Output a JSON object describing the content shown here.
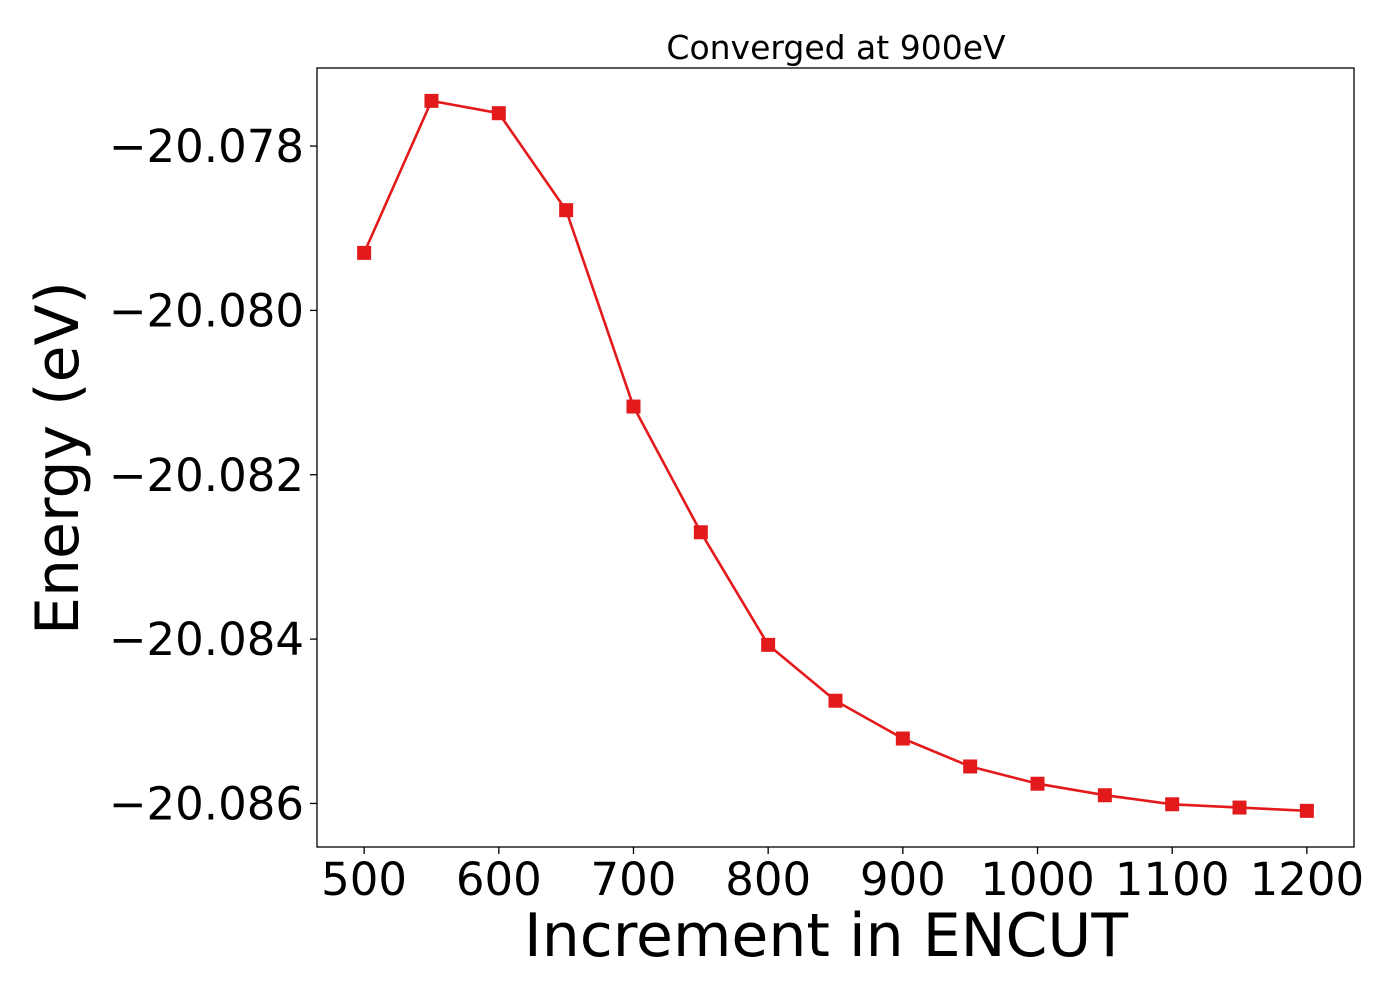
{
  "chart_data": {
    "type": "line",
    "title": "Converged at 900eV",
    "xlabel": "Increment in ENCUT",
    "ylabel": "Energy (eV)",
    "xlim": [
      465,
      1235
    ],
    "ylim": [
      -20.08653,
      -20.07705
    ],
    "xticks": [
      500,
      600,
      700,
      800,
      900,
      1000,
      1100,
      1200
    ],
    "yticks": [
      -20.078,
      -20.08,
      -20.082,
      -20.084,
      -20.086
    ],
    "ytick_labels": [
      "−20.078",
      "−20.080",
      "−20.082",
      "−20.084",
      "−20.086"
    ],
    "grid": false,
    "series": [
      {
        "color": "#e31a1c",
        "marker": "square",
        "x": [
          500,
          550,
          600,
          650,
          700,
          750,
          800,
          850,
          900,
          950,
          1000,
          1050,
          1100,
          1150,
          1200
        ],
        "y": [
          -20.0793,
          -20.07745,
          -20.0776,
          -20.07878,
          -20.08117,
          -20.0827,
          -20.08407,
          -20.08475,
          -20.08521,
          -20.08555,
          -20.08576,
          -20.0859,
          -20.08601,
          -20.08605,
          -20.08609
        ]
      }
    ]
  }
}
